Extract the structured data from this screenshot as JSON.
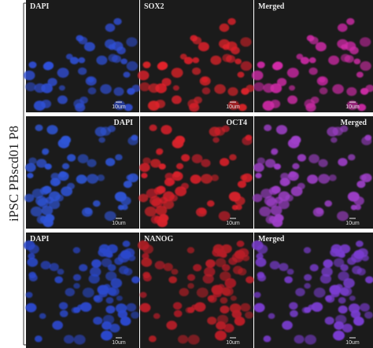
{
  "side_label": "iPSC PBscd01 P8",
  "rows": [
    {
      "panels": [
        {
          "label": "DAPI",
          "scale": "10um"
        },
        {
          "label": "SOX2",
          "scale": "10um"
        },
        {
          "label": "Merged",
          "scale": "10um"
        }
      ]
    },
    {
      "panels": [
        {
          "label": "DAPI",
          "scale": "10um"
        },
        {
          "label": "OCT4",
          "scale": "10um"
        },
        {
          "label": "Merged",
          "scale": "10um"
        }
      ]
    },
    {
      "panels": [
        {
          "label": "DAPI",
          "scale": "10um"
        },
        {
          "label": "NANOG",
          "scale": "10um"
        },
        {
          "label": "Merged",
          "scale": "10um"
        }
      ]
    }
  ]
}
